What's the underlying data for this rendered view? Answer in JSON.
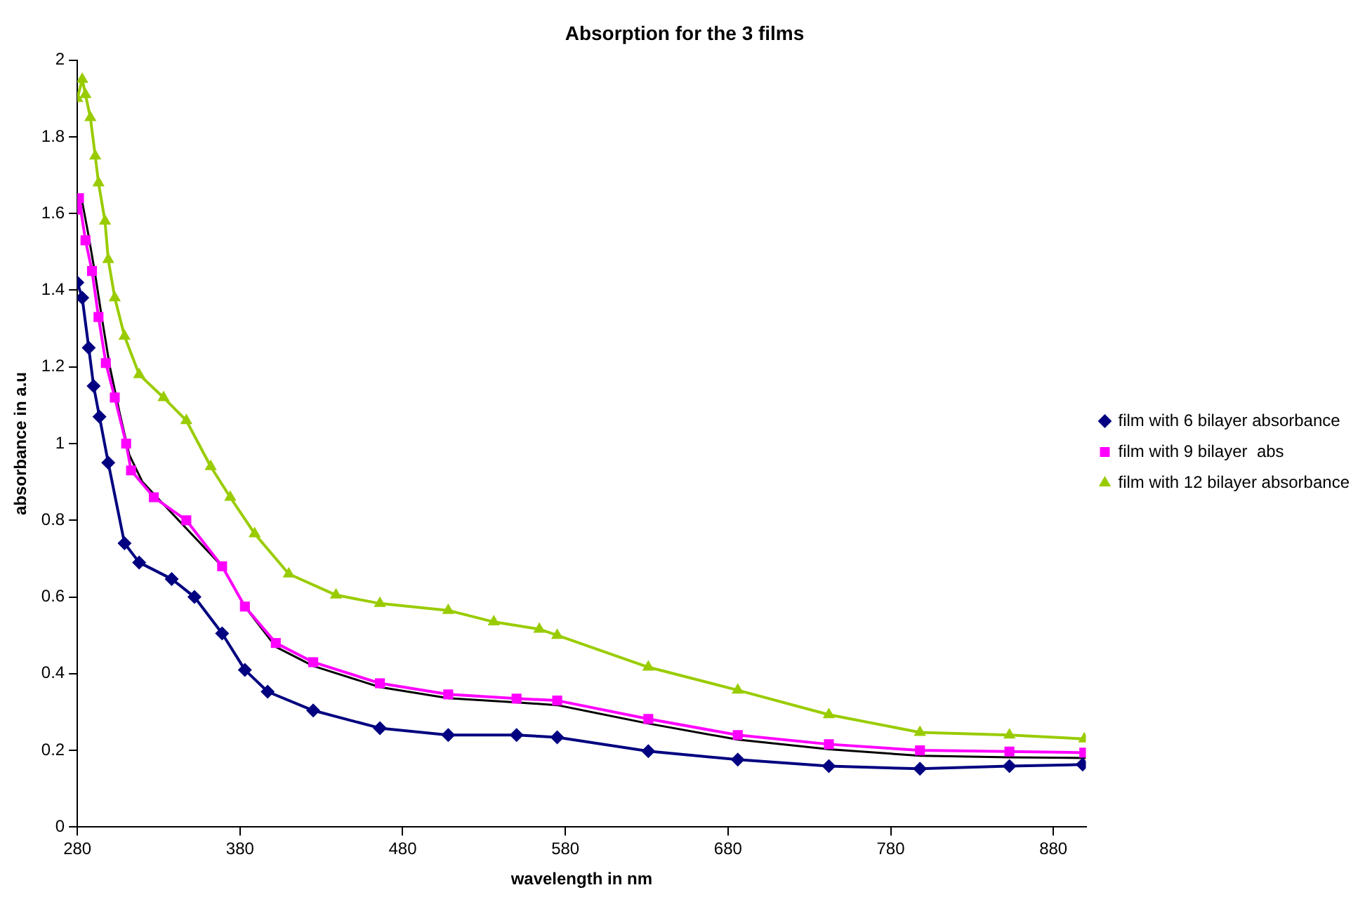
{
  "chart_data": {
    "type": "line",
    "title": "Absorption for the 3 films",
    "xlabel": "wavelength in nm",
    "ylabel": "absorbance in a.u",
    "xlim": [
      280,
      900
    ],
    "xticks": [
      280,
      380,
      480,
      580,
      680,
      780,
      880
    ],
    "ylim": [
      0,
      2
    ],
    "yticks": [
      0,
      0.2,
      0.4,
      0.6,
      0.8,
      1,
      1.2,
      1.4,
      1.6,
      1.8,
      2
    ],
    "grid": false,
    "legend": "right",
    "series": [
      {
        "name": "film with 6 bilayer absorbance",
        "color": "#000080",
        "marker": "diamond",
        "x": [
          280,
          283,
          287,
          290,
          293.6,
          299,
          309,
          318,
          338,
          352,
          369,
          383,
          397,
          425,
          466,
          508,
          550,
          575,
          631,
          686,
          742,
          798,
          853,
          898
        ],
        "values": [
          1.42,
          1.38,
          1.25,
          1.15,
          1.07,
          0.95,
          0.74,
          0.69,
          0.647,
          0.6,
          0.505,
          0.41,
          0.353,
          0.304,
          0.258,
          0.24,
          0.24,
          0.234,
          0.198,
          0.176,
          0.159,
          0.152,
          0.159,
          0.163
        ]
      },
      {
        "name": "film with 9 bilayer  abs",
        "color": "#ff00ff",
        "marker": "square",
        "x": [
          280,
          281,
          285,
          289,
          293,
          297.5,
          303,
          310,
          313,
          327,
          347,
          369,
          383,
          402,
          425,
          466,
          508,
          550,
          575,
          631,
          686,
          742,
          798,
          853,
          899
        ],
        "values": [
          1.61,
          1.64,
          1.53,
          1.45,
          1.33,
          1.21,
          1.12,
          1.0,
          0.93,
          0.86,
          0.8,
          0.68,
          0.575,
          0.48,
          0.43,
          0.375,
          0.346,
          0.335,
          0.33,
          0.282,
          0.24,
          0.216,
          0.2,
          0.197,
          0.194
        ]
      },
      {
        "name": "film with 12 bilayer absorbance",
        "color": "#99cc00",
        "marker": "triangle",
        "x": [
          280,
          283,
          285,
          288,
          291,
          293,
          297,
          299,
          303,
          309,
          318,
          333,
          347,
          362,
          374,
          389,
          410,
          439,
          466,
          508,
          536,
          564,
          575,
          631,
          686,
          742,
          798,
          853,
          899
        ],
        "values": [
          1.9,
          1.95,
          1.91,
          1.85,
          1.75,
          1.68,
          1.58,
          1.48,
          1.38,
          1.28,
          1.18,
          1.12,
          1.06,
          0.94,
          0.86,
          0.765,
          0.66,
          0.605,
          0.583,
          0.565,
          0.535,
          0.516,
          0.5,
          0.417,
          0.357,
          0.293,
          0.247,
          0.24,
          0.23
        ]
      },
      {
        "color": "#000000",
        "marker": "none",
        "x": [
          283,
          287,
          291,
          295,
          300,
          306,
          312,
          320,
          340,
          369,
          383,
          402,
          425,
          466,
          508,
          550,
          575,
          631,
          686,
          742,
          798,
          853,
          900
        ],
        "values": [
          1.63,
          1.54,
          1.44,
          1.33,
          1.2,
          1.08,
          0.97,
          0.9,
          0.81,
          0.68,
          0.575,
          0.47,
          0.42,
          0.365,
          0.336,
          0.325,
          0.318,
          0.27,
          0.228,
          0.203,
          0.186,
          0.182,
          0.18
        ]
      }
    ]
  }
}
